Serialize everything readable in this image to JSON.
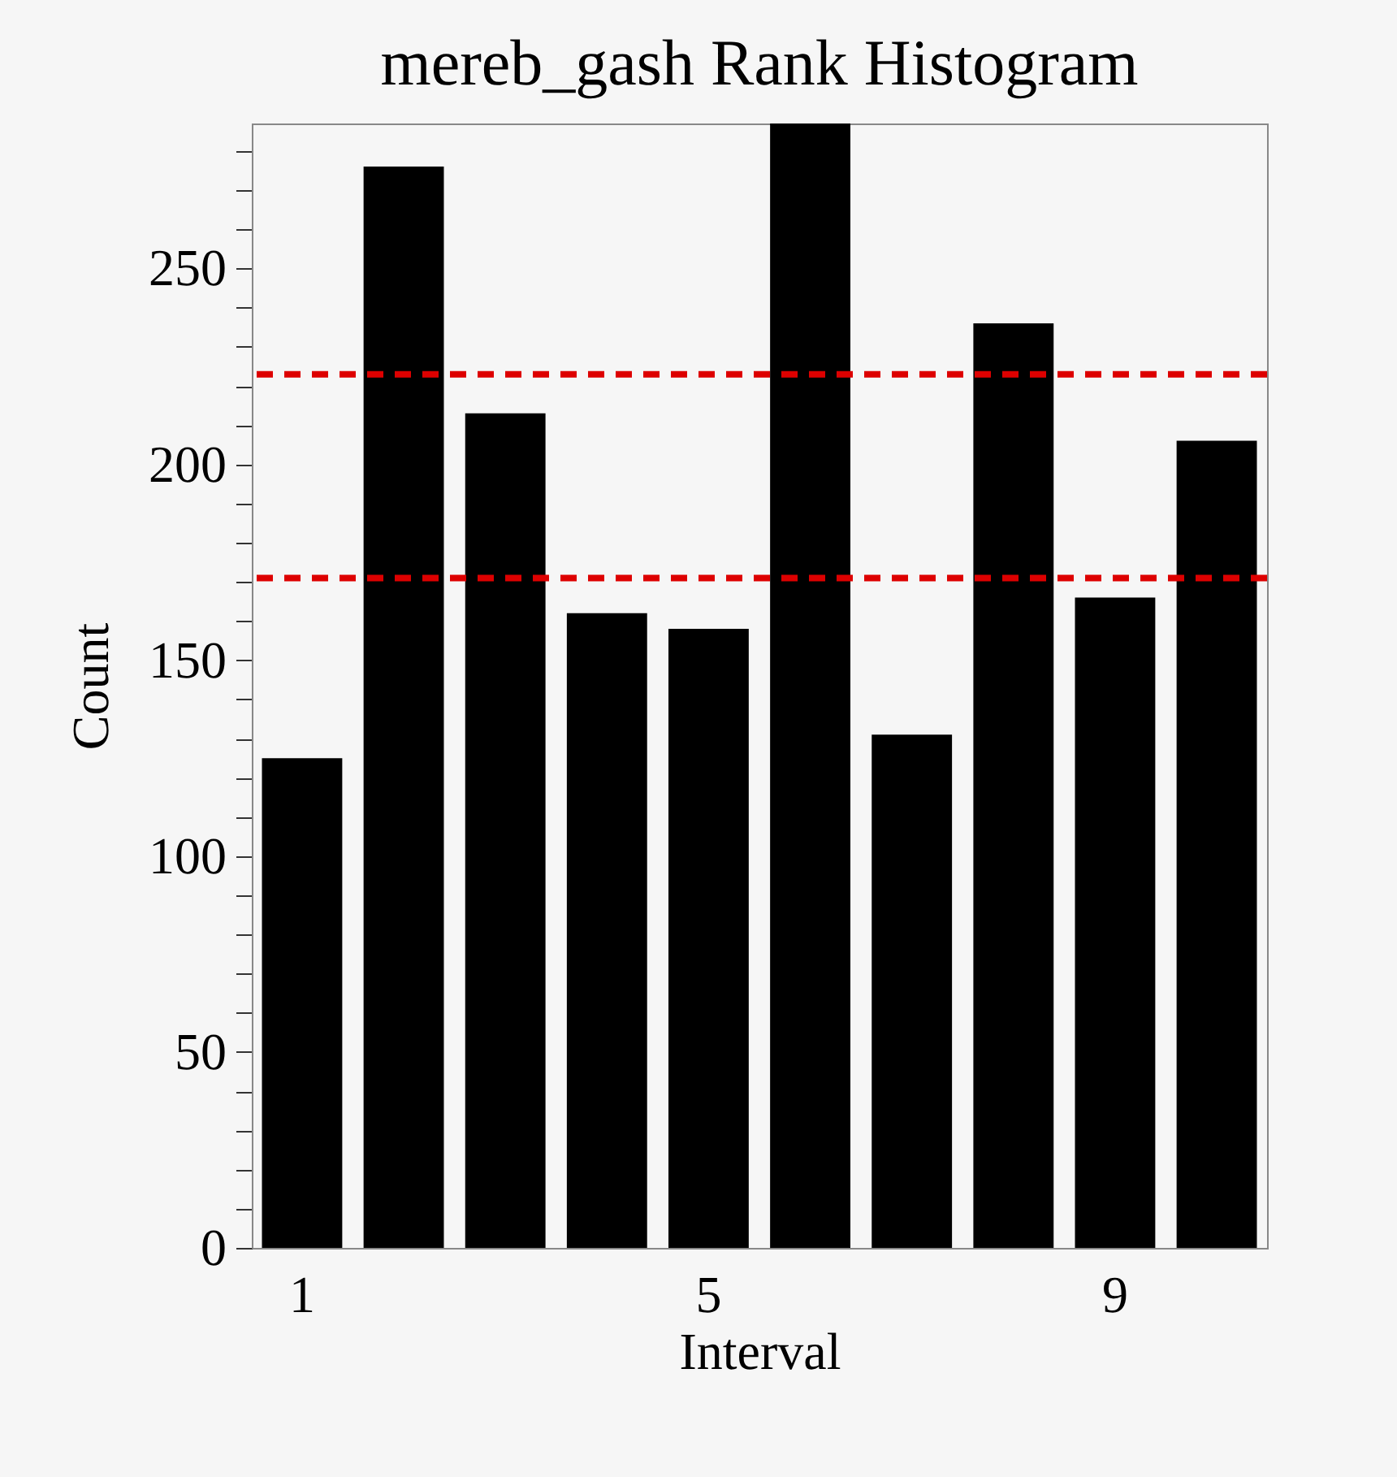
{
  "chart_data": {
    "type": "bar",
    "title": "mereb_gash Rank Histogram",
    "xlabel": "Interval",
    "ylabel": "Count",
    "categories": [
      "1",
      null,
      null,
      null,
      "5",
      null,
      null,
      null,
      "9",
      null
    ],
    "values": [
      125,
      276,
      213,
      162,
      158,
      287,
      131,
      236,
      166,
      206
    ],
    "color": "#000000",
    "ylim": [
      0,
      287
    ],
    "yticks": [
      0,
      {
        "value": 10,
        "label": null
      },
      {
        "value": 20,
        "label": null
      },
      {
        "value": 30,
        "label": null
      },
      {
        "value": 40,
        "label": null
      },
      50,
      {
        "value": 60,
        "label": null
      },
      {
        "value": 70,
        "label": null
      },
      {
        "value": 80,
        "label": null
      },
      {
        "value": 90,
        "label": null
      },
      100,
      {
        "value": 110,
        "label": null
      },
      {
        "value": 120,
        "label": null
      },
      {
        "value": 130,
        "label": null
      },
      {
        "value": 140,
        "label": null
      },
      150,
      {
        "value": 160,
        "label": null
      },
      {
        "value": 170,
        "label": null
      },
      {
        "value": 180,
        "label": null
      },
      {
        "value": 190,
        "label": null
      },
      200,
      {
        "value": 210,
        "label": null
      },
      {
        "value": 220,
        "label": null
      },
      {
        "value": 230,
        "label": null
      },
      {
        "value": 240,
        "label": null
      },
      250,
      {
        "value": 260,
        "label": null
      },
      {
        "value": 270,
        "label": null
      },
      {
        "value": 280,
        "label": null
      }
    ],
    "ref_lines": [
      {
        "axis": "y",
        "value": 223,
        "color": "#dd0000",
        "line_style": "dashed"
      },
      {
        "axis": "y",
        "value": 171,
        "color": "#dd0000",
        "line_style": "dashed"
      }
    ]
  }
}
